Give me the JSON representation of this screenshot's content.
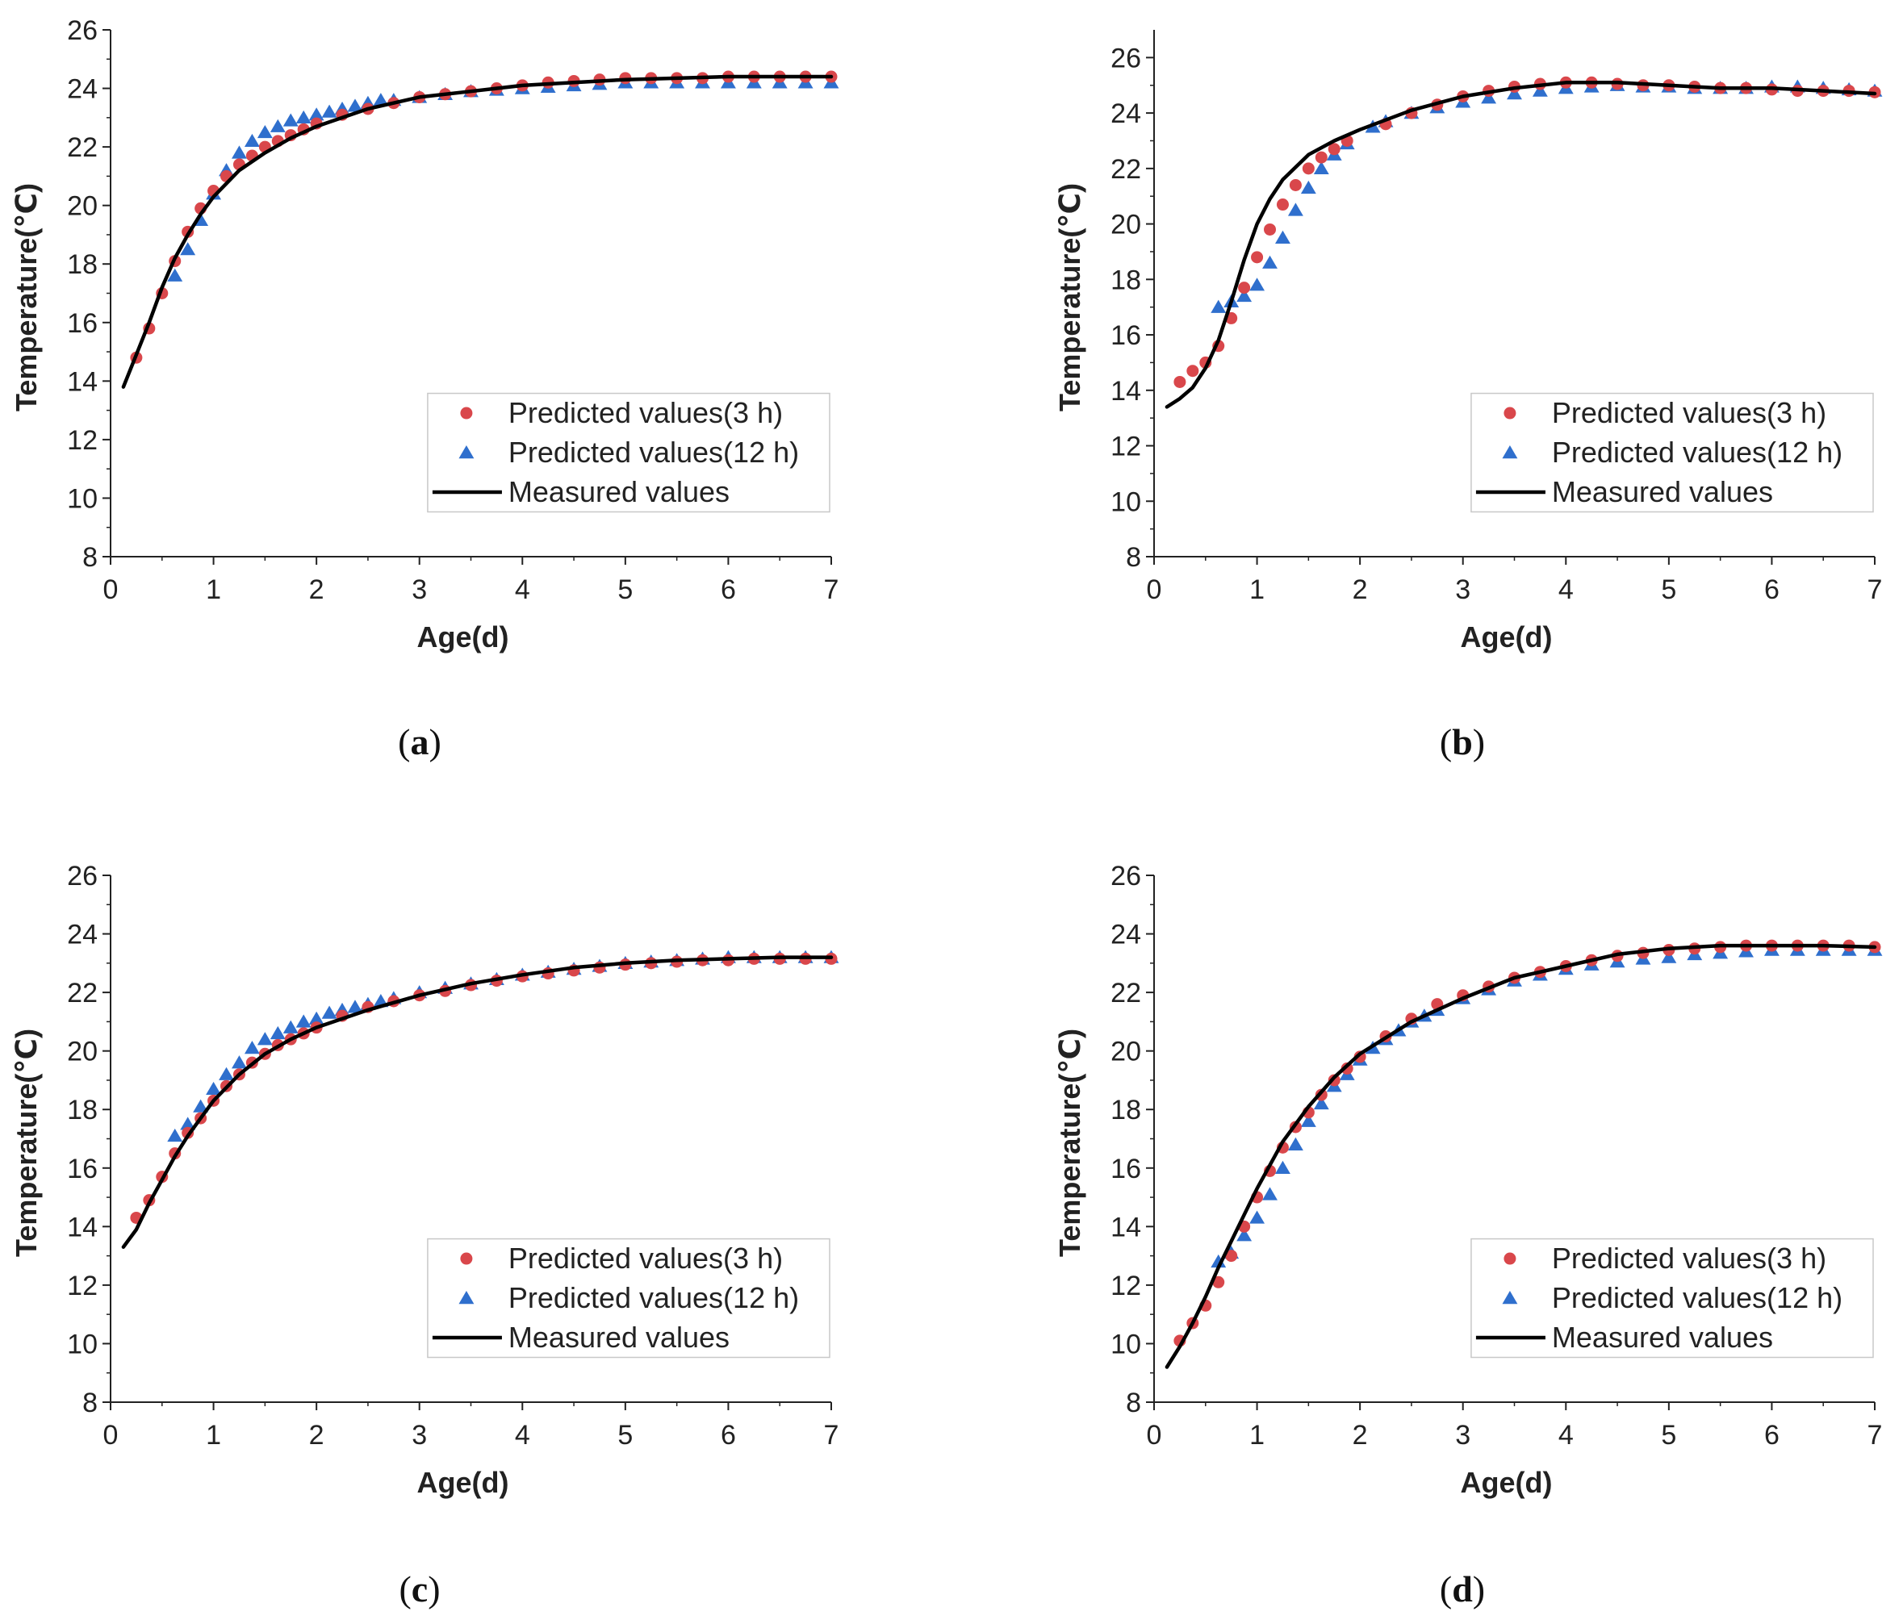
{
  "colors": {
    "predicted_3h": "#d9474b",
    "predicted_12h": "#2f6fcd",
    "measured": "#000000",
    "axis": "#222222"
  },
  "chart_data": [
    {
      "type": "line",
      "panel": "a",
      "caption_letter": "a",
      "xlabel": "Age(d)",
      "ylabel": "Temperature(℃)",
      "xlim": [
        0,
        7
      ],
      "ylim": [
        8,
        26
      ],
      "xticks": [
        0,
        1,
        2,
        3,
        4,
        5,
        6,
        7
      ],
      "yticks": [
        8,
        10,
        12,
        14,
        16,
        18,
        20,
        22,
        24,
        26
      ],
      "legend": {
        "position": "lower-right",
        "entries": [
          "Predicted values(3 h)",
          "Predicted values(12 h)",
          "Measured values"
        ]
      },
      "series": [
        {
          "name": "Measured values",
          "style": "line",
          "x": [
            0.125,
            0.25,
            0.375,
            0.5,
            0.625,
            0.75,
            0.875,
            1.0,
            1.25,
            1.5,
            1.75,
            2.0,
            2.5,
            3.0,
            3.5,
            4.0,
            4.5,
            5.0,
            5.5,
            6.0,
            6.5,
            7.0
          ],
          "y": [
            13.8,
            14.9,
            16.0,
            17.2,
            18.2,
            19.0,
            19.7,
            20.3,
            21.2,
            21.8,
            22.3,
            22.7,
            23.3,
            23.7,
            23.9,
            24.1,
            24.2,
            24.3,
            24.35,
            24.4,
            24.4,
            24.4
          ]
        },
        {
          "name": "Predicted values(3 h)",
          "style": "circle",
          "x": [
            0.25,
            0.375,
            0.5,
            0.625,
            0.75,
            0.875,
            1.0,
            1.125,
            1.25,
            1.375,
            1.5,
            1.625,
            1.75,
            1.875,
            2.0,
            2.25,
            2.5,
            2.75,
            3.0,
            3.25,
            3.5,
            3.75,
            4.0,
            4.25,
            4.5,
            4.75,
            5.0,
            5.25,
            5.5,
            5.75,
            6.0,
            6.25,
            6.5,
            6.75,
            7.0
          ],
          "y": [
            14.8,
            15.8,
            17.0,
            18.1,
            19.1,
            19.9,
            20.5,
            21.0,
            21.4,
            21.7,
            22.0,
            22.2,
            22.4,
            22.6,
            22.8,
            23.1,
            23.3,
            23.5,
            23.7,
            23.8,
            23.9,
            24.0,
            24.1,
            24.2,
            24.25,
            24.3,
            24.35,
            24.35,
            24.35,
            24.35,
            24.4,
            24.4,
            24.4,
            24.4,
            24.4
          ]
        },
        {
          "name": "Predicted values(12 h)",
          "style": "triangle",
          "x": [
            0.625,
            0.75,
            0.875,
            1.0,
            1.125,
            1.25,
            1.375,
            1.5,
            1.625,
            1.75,
            1.875,
            2.0,
            2.125,
            2.25,
            2.375,
            2.5,
            2.625,
            2.75,
            3.0,
            3.25,
            3.5,
            3.75,
            4.0,
            4.25,
            4.5,
            4.75,
            5.0,
            5.25,
            5.5,
            5.75,
            6.0,
            6.25,
            6.5,
            6.75,
            7.0
          ],
          "y": [
            17.6,
            18.5,
            19.5,
            20.4,
            21.2,
            21.8,
            22.2,
            22.5,
            22.7,
            22.9,
            23.0,
            23.1,
            23.2,
            23.3,
            23.4,
            23.5,
            23.6,
            23.6,
            23.7,
            23.8,
            23.9,
            23.95,
            24.0,
            24.05,
            24.1,
            24.15,
            24.2,
            24.2,
            24.2,
            24.2,
            24.2,
            24.2,
            24.2,
            24.2,
            24.2
          ]
        }
      ]
    },
    {
      "type": "line",
      "panel": "b",
      "caption_letter": "b",
      "xlabel": "Age(d)",
      "ylabel": "Temperature(℃)",
      "xlim": [
        0,
        7
      ],
      "ylim": [
        8,
        27
      ],
      "xticks": [
        0,
        1,
        2,
        3,
        4,
        5,
        6,
        7
      ],
      "yticks": [
        8,
        10,
        12,
        14,
        16,
        18,
        20,
        22,
        24,
        26
      ],
      "legend": {
        "position": "lower-right",
        "entries": [
          "Predicted values(3 h)",
          "Predicted values(12 h)",
          "Measured values"
        ]
      },
      "series": [
        {
          "name": "Measured values",
          "style": "line",
          "x": [
            0.125,
            0.25,
            0.375,
            0.5,
            0.625,
            0.75,
            0.875,
            1.0,
            1.125,
            1.25,
            1.5,
            1.75,
            2.0,
            2.5,
            3.0,
            3.5,
            4.0,
            4.5,
            5.0,
            5.5,
            6.0,
            6.5,
            7.0
          ],
          "y": [
            13.4,
            13.7,
            14.1,
            14.8,
            15.8,
            17.2,
            18.7,
            20.0,
            20.9,
            21.6,
            22.5,
            23.0,
            23.4,
            24.1,
            24.6,
            24.9,
            25.1,
            25.1,
            25.0,
            24.9,
            24.9,
            24.8,
            24.7
          ]
        },
        {
          "name": "Predicted values(3 h)",
          "style": "circle",
          "x": [
            0.25,
            0.375,
            0.5,
            0.625,
            0.75,
            0.875,
            1.0,
            1.125,
            1.25,
            1.375,
            1.5,
            1.625,
            1.75,
            1.875,
            2.25,
            2.5,
            2.75,
            3.0,
            3.25,
            3.5,
            3.75,
            4.0,
            4.25,
            4.5,
            4.75,
            5.0,
            5.25,
            5.5,
            5.75,
            6.0,
            6.25,
            6.5,
            6.75,
            7.0
          ],
          "y": [
            14.3,
            14.7,
            15.0,
            15.6,
            16.6,
            17.7,
            18.8,
            19.8,
            20.7,
            21.4,
            22.0,
            22.4,
            22.7,
            23.0,
            23.6,
            24.0,
            24.3,
            24.6,
            24.8,
            24.95,
            25.05,
            25.1,
            25.1,
            25.05,
            25.0,
            25.0,
            24.95,
            24.9,
            24.9,
            24.85,
            24.8,
            24.8,
            24.8,
            24.75
          ]
        },
        {
          "name": "Predicted values(12 h)",
          "style": "triangle",
          "x": [
            0.625,
            0.75,
            0.875,
            1.0,
            1.125,
            1.25,
            1.375,
            1.5,
            1.625,
            1.75,
            1.875,
            2.125,
            2.25,
            2.5,
            2.75,
            3.0,
            3.25,
            3.5,
            3.75,
            4.0,
            4.25,
            4.5,
            4.75,
            5.0,
            5.25,
            5.5,
            5.75,
            6.0,
            6.25,
            6.5,
            6.75,
            7.0
          ],
          "y": [
            17.0,
            17.2,
            17.4,
            17.8,
            18.6,
            19.5,
            20.5,
            21.3,
            22.0,
            22.5,
            22.9,
            23.5,
            23.7,
            24.0,
            24.2,
            24.4,
            24.55,
            24.7,
            24.8,
            24.9,
            24.95,
            25.0,
            24.95,
            24.95,
            24.9,
            24.9,
            24.9,
            24.95,
            24.95,
            24.9,
            24.85,
            24.8
          ]
        }
      ]
    },
    {
      "type": "line",
      "panel": "c",
      "caption_letter": "c",
      "xlabel": "Age(d)",
      "ylabel": "Temperature(℃)",
      "xlim": [
        0,
        7
      ],
      "ylim": [
        8,
        26
      ],
      "xticks": [
        0,
        1,
        2,
        3,
        4,
        5,
        6,
        7
      ],
      "yticks": [
        8,
        10,
        12,
        14,
        16,
        18,
        20,
        22,
        24,
        26
      ],
      "legend": {
        "position": "lower-right",
        "entries": [
          "Predicted values(3 h)",
          "Predicted values(12 h)",
          "Measured values"
        ]
      },
      "series": [
        {
          "name": "Measured values",
          "style": "line",
          "x": [
            0.125,
            0.25,
            0.375,
            0.5,
            0.625,
            0.75,
            0.875,
            1.0,
            1.25,
            1.5,
            1.75,
            2.0,
            2.5,
            3.0,
            3.5,
            4.0,
            4.5,
            5.0,
            5.5,
            6.0,
            6.5,
            7.0
          ],
          "y": [
            13.3,
            13.9,
            14.8,
            15.6,
            16.4,
            17.1,
            17.7,
            18.3,
            19.2,
            19.9,
            20.4,
            20.8,
            21.4,
            21.9,
            22.3,
            22.6,
            22.85,
            23.0,
            23.1,
            23.15,
            23.2,
            23.2
          ]
        },
        {
          "name": "Predicted values(3 h)",
          "style": "circle",
          "x": [
            0.25,
            0.375,
            0.5,
            0.625,
            0.75,
            0.875,
            1.0,
            1.125,
            1.25,
            1.375,
            1.5,
            1.625,
            1.75,
            1.875,
            2.0,
            2.25,
            2.5,
            2.75,
            3.0,
            3.25,
            3.5,
            3.75,
            4.0,
            4.25,
            4.5,
            4.75,
            5.0,
            5.25,
            5.5,
            5.75,
            6.0,
            6.25,
            6.5,
            6.75,
            7.0
          ],
          "y": [
            14.3,
            14.9,
            15.7,
            16.5,
            17.2,
            17.7,
            18.3,
            18.8,
            19.2,
            19.6,
            19.9,
            20.2,
            20.4,
            20.6,
            20.8,
            21.2,
            21.5,
            21.7,
            21.9,
            22.05,
            22.25,
            22.4,
            22.55,
            22.65,
            22.75,
            22.85,
            22.95,
            23.0,
            23.05,
            23.1,
            23.1,
            23.15,
            23.15,
            23.15,
            23.15
          ]
        },
        {
          "name": "Predicted values(12 h)",
          "style": "triangle",
          "x": [
            0.625,
            0.75,
            0.875,
            1.0,
            1.125,
            1.25,
            1.375,
            1.5,
            1.625,
            1.75,
            1.875,
            2.0,
            2.125,
            2.25,
            2.375,
            2.5,
            2.625,
            2.75,
            3.0,
            3.25,
            3.5,
            3.75,
            4.0,
            4.25,
            4.5,
            4.75,
            5.0,
            5.25,
            5.5,
            5.75,
            6.0,
            6.25,
            6.5,
            6.75,
            7.0
          ],
          "y": [
            17.1,
            17.5,
            18.1,
            18.7,
            19.2,
            19.6,
            20.1,
            20.4,
            20.6,
            20.8,
            21.0,
            21.1,
            21.3,
            21.4,
            21.5,
            21.6,
            21.7,
            21.8,
            22.0,
            22.15,
            22.3,
            22.45,
            22.6,
            22.7,
            22.8,
            22.9,
            23.0,
            23.05,
            23.1,
            23.15,
            23.2,
            23.2,
            23.2,
            23.2,
            23.2
          ]
        }
      ]
    },
    {
      "type": "line",
      "panel": "d",
      "caption_letter": "d",
      "xlabel": "Age(d)",
      "ylabel": "Temperature(℃)",
      "xlim": [
        0,
        7
      ],
      "ylim": [
        8,
        26
      ],
      "xticks": [
        0,
        1,
        2,
        3,
        4,
        5,
        6,
        7
      ],
      "yticks": [
        8,
        10,
        12,
        14,
        16,
        18,
        20,
        22,
        24,
        26
      ],
      "legend": {
        "position": "lower-right",
        "entries": [
          "Predicted values(3 h)",
          "Predicted values(12 h)",
          "Measured values"
        ]
      },
      "series": [
        {
          "name": "Measured values",
          "style": "line",
          "x": [
            0.125,
            0.25,
            0.375,
            0.5,
            0.625,
            0.75,
            0.875,
            1.0,
            1.25,
            1.5,
            1.75,
            2.0,
            2.5,
            3.0,
            3.5,
            4.0,
            4.5,
            5.0,
            5.5,
            6.0,
            6.5,
            7.0
          ],
          "y": [
            9.2,
            9.9,
            10.7,
            11.6,
            12.6,
            13.5,
            14.4,
            15.3,
            16.9,
            18.1,
            19.1,
            19.9,
            21.0,
            21.8,
            22.5,
            22.9,
            23.3,
            23.5,
            23.6,
            23.6,
            23.6,
            23.55
          ]
        },
        {
          "name": "Predicted values(3 h)",
          "style": "circle",
          "x": [
            0.25,
            0.375,
            0.5,
            0.625,
            0.75,
            0.875,
            1.0,
            1.125,
            1.25,
            1.375,
            1.5,
            1.625,
            1.75,
            1.875,
            2.0,
            2.25,
            2.5,
            2.75,
            3.0,
            3.25,
            3.5,
            3.75,
            4.0,
            4.25,
            4.5,
            4.75,
            5.0,
            5.25,
            5.5,
            5.75,
            6.0,
            6.25,
            6.5,
            6.75,
            7.0
          ],
          "y": [
            10.1,
            10.7,
            11.3,
            12.1,
            13.0,
            14.0,
            15.0,
            15.9,
            16.7,
            17.4,
            17.9,
            18.5,
            19.0,
            19.4,
            19.8,
            20.5,
            21.1,
            21.6,
            21.9,
            22.2,
            22.5,
            22.7,
            22.9,
            23.1,
            23.25,
            23.35,
            23.45,
            23.5,
            23.55,
            23.6,
            23.6,
            23.6,
            23.6,
            23.6,
            23.55
          ]
        },
        {
          "name": "Predicted values(12 h)",
          "style": "triangle",
          "x": [
            0.625,
            0.75,
            0.875,
            1.0,
            1.125,
            1.25,
            1.375,
            1.5,
            1.625,
            1.75,
            1.875,
            2.0,
            2.125,
            2.25,
            2.375,
            2.5,
            2.625,
            2.75,
            3.0,
            3.25,
            3.5,
            3.75,
            4.0,
            4.25,
            4.5,
            4.75,
            5.0,
            5.25,
            5.5,
            5.75,
            6.0,
            6.25,
            6.5,
            6.75,
            7.0
          ],
          "y": [
            12.8,
            13.1,
            13.7,
            14.3,
            15.1,
            16.0,
            16.8,
            17.6,
            18.2,
            18.8,
            19.2,
            19.7,
            20.1,
            20.4,
            20.7,
            21.0,
            21.2,
            21.4,
            21.8,
            22.1,
            22.4,
            22.6,
            22.8,
            22.95,
            23.05,
            23.15,
            23.2,
            23.3,
            23.35,
            23.4,
            23.45,
            23.45,
            23.45,
            23.45,
            23.45
          ]
        }
      ]
    }
  ]
}
